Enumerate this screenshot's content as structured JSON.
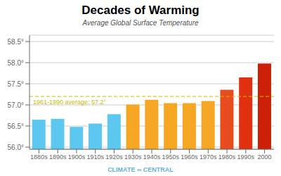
{
  "chart_data": {
    "type": "bar",
    "title": "Decades of Warming",
    "subtitle": "Average Global Surface Temperature",
    "categories": [
      "1880s",
      "1890s",
      "1900s",
      "1910s",
      "1920s",
      "1930s",
      "1940s",
      "1950s",
      "1960s",
      "1970s",
      "1980s",
      "1990s",
      "2000"
    ],
    "values": [
      56.65,
      56.67,
      56.48,
      56.56,
      56.78,
      57.01,
      57.12,
      57.04,
      57.04,
      57.09,
      57.36,
      57.65,
      57.98
    ],
    "colors": [
      "#5cc8f0",
      "#5cc8f0",
      "#5cc8f0",
      "#5cc8f0",
      "#5cc8f0",
      "#f5a623",
      "#f5a623",
      "#f5a623",
      "#f5a623",
      "#f5a623",
      "#e84c1e",
      "#e03010",
      "#cc2008"
    ],
    "ylim": [
      55.95,
      58.65
    ],
    "yticks": [
      {
        "value": 56.0,
        "label": "56.0°"
      },
      {
        "value": 56.5,
        "label": "56.5°"
      },
      {
        "value": 57.0,
        "label": "57.0°"
      },
      {
        "value": 57.5,
        "label": "57.5°"
      },
      {
        "value": 58.0,
        "label": "58.0°"
      },
      {
        "value": 58.5,
        "label": "58.5°"
      }
    ],
    "grid": true,
    "annotations": [
      {
        "text": "1961-1990 average: 57.2°",
        "y": 57.2,
        "color": "#ccbb00"
      },
      {
        "text": "CLIMATE ∞ CENTRAL",
        "color": "#6ab0d4"
      }
    ]
  }
}
